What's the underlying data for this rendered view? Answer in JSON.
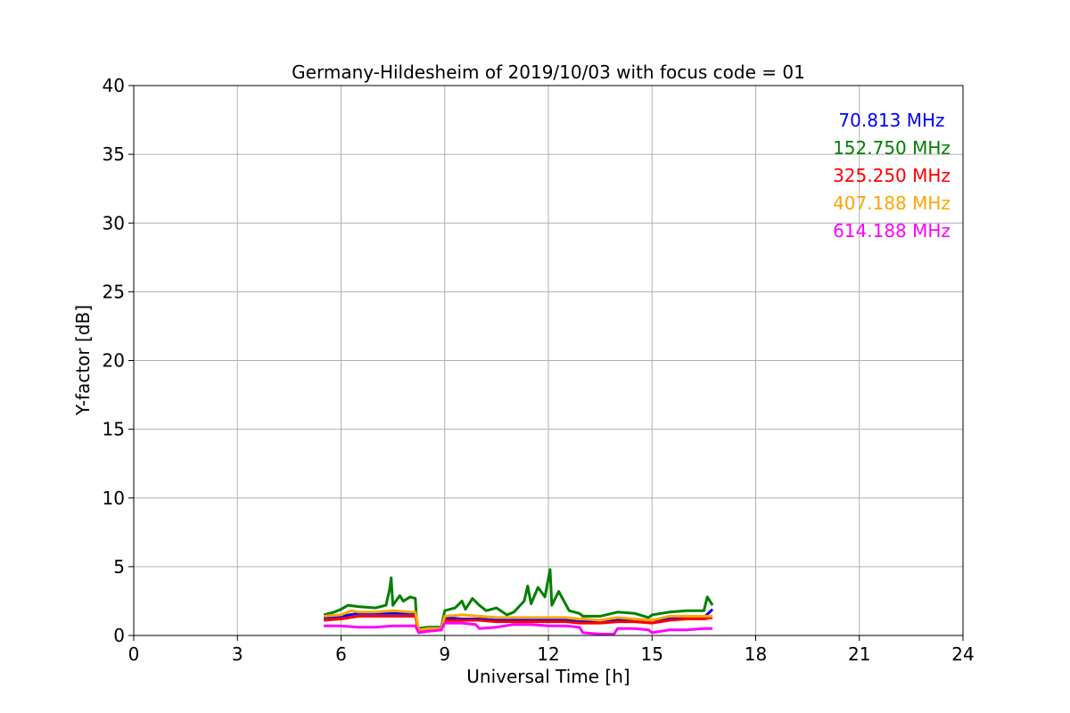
{
  "chart_data": {
    "type": "line",
    "title": "Germany-Hildesheim of 2019/10/03 with focus code = 01",
    "xlabel": "Universal Time [h]",
    "ylabel": "Y-factor [dB]",
    "xlim": [
      0,
      24
    ],
    "ylim": [
      0,
      40
    ],
    "x_ticks": [
      0,
      3,
      6,
      9,
      12,
      15,
      18,
      21,
      24
    ],
    "y_ticks": [
      0,
      5,
      10,
      15,
      20,
      25,
      30,
      35,
      40
    ],
    "grid": true,
    "legend_position": "top-right",
    "series": [
      {
        "name": "70.813 MHz",
        "color": "#0000ff",
        "x": [
          5.5,
          6.0,
          6.5,
          7.0,
          7.5,
          8.0,
          8.15,
          8.25,
          8.5,
          8.9,
          9.0,
          9.5,
          10.0,
          10.5,
          11.0,
          11.5,
          12.0,
          12.5,
          12.9,
          13.0,
          13.5,
          14.0,
          14.5,
          15.0,
          15.5,
          16.0,
          16.5,
          16.75
        ],
        "y": [
          1.3,
          1.4,
          1.6,
          1.6,
          1.6,
          1.6,
          1.6,
          0.3,
          0.4,
          0.5,
          1.3,
          1.2,
          1.2,
          1.1,
          1.1,
          1.1,
          1.1,
          1.1,
          1.0,
          1.0,
          1.0,
          1.1,
          1.1,
          1.0,
          1.2,
          1.3,
          1.3,
          1.9
        ]
      },
      {
        "name": "152.750 MHz",
        "color": "#008000",
        "x": [
          5.5,
          5.8,
          6.0,
          6.2,
          6.5,
          7.0,
          7.3,
          7.4,
          7.45,
          7.5,
          7.7,
          7.8,
          8.0,
          8.15,
          8.2,
          8.5,
          8.9,
          9.0,
          9.3,
          9.5,
          9.6,
          9.8,
          10.0,
          10.2,
          10.5,
          10.8,
          11.0,
          11.3,
          11.4,
          11.5,
          11.7,
          11.9,
          12.05,
          12.1,
          12.3,
          12.6,
          12.9,
          13.0,
          13.5,
          14.0,
          14.5,
          14.9,
          15.0,
          15.5,
          16.0,
          16.5,
          16.6,
          16.75
        ],
        "y": [
          1.5,
          1.7,
          1.9,
          2.2,
          2.1,
          2.0,
          2.2,
          3.3,
          4.2,
          2.2,
          2.9,
          2.5,
          2.8,
          2.7,
          0.5,
          0.6,
          0.6,
          1.8,
          2.0,
          2.5,
          1.9,
          2.7,
          2.2,
          1.8,
          2.0,
          1.5,
          1.7,
          2.5,
          3.6,
          2.3,
          3.5,
          2.8,
          4.8,
          2.2,
          3.2,
          1.8,
          1.6,
          1.4,
          1.4,
          1.7,
          1.6,
          1.3,
          1.5,
          1.7,
          1.8,
          1.8,
          2.8,
          2.2
        ]
      },
      {
        "name": "325.250 MHz",
        "color": "#ff0000",
        "x": [
          5.5,
          6.0,
          6.5,
          7.0,
          7.5,
          8.0,
          8.15,
          8.25,
          8.5,
          8.9,
          9.0,
          9.5,
          10.0,
          10.5,
          11.0,
          11.5,
          12.0,
          12.5,
          12.9,
          13.0,
          13.5,
          14.0,
          14.5,
          15.0,
          15.5,
          16.0,
          16.5,
          16.75
        ],
        "y": [
          1.1,
          1.2,
          1.4,
          1.4,
          1.4,
          1.4,
          1.4,
          0.3,
          0.3,
          0.4,
          1.1,
          1.1,
          1.1,
          1.0,
          1.0,
          1.0,
          1.0,
          1.0,
          0.9,
          0.9,
          0.9,
          1.0,
          1.0,
          0.9,
          1.1,
          1.2,
          1.2,
          1.3
        ]
      },
      {
        "name": "407.188 MHz",
        "color": "#ffa500",
        "x": [
          5.5,
          6.0,
          6.3,
          6.5,
          7.0,
          7.5,
          8.0,
          8.15,
          8.25,
          8.5,
          8.9,
          9.0,
          9.5,
          10.0,
          10.5,
          11.0,
          11.5,
          12.0,
          12.5,
          12.9,
          13.0,
          13.5,
          14.0,
          14.5,
          15.0,
          15.5,
          16.0,
          16.5,
          16.75
        ],
        "y": [
          1.4,
          1.5,
          1.8,
          1.7,
          1.7,
          1.8,
          1.7,
          1.7,
          0.4,
          0.5,
          0.5,
          1.4,
          1.5,
          1.4,
          1.3,
          1.3,
          1.3,
          1.3,
          1.3,
          1.2,
          1.2,
          1.1,
          1.3,
          1.2,
          1.1,
          1.4,
          1.4,
          1.4,
          1.4
        ]
      },
      {
        "name": "614.188 MHz",
        "color": "#ff00ff",
        "x": [
          5.5,
          6.0,
          6.5,
          7.0,
          7.5,
          8.0,
          8.15,
          8.25,
          8.5,
          8.9,
          9.0,
          9.5,
          9.9,
          10.0,
          10.5,
          11.0,
          11.5,
          12.0,
          12.5,
          12.9,
          13.0,
          13.5,
          13.9,
          14.0,
          14.5,
          14.9,
          15.0,
          15.5,
          16.0,
          16.5,
          16.75
        ],
        "y": [
          0.7,
          0.7,
          0.6,
          0.6,
          0.7,
          0.7,
          0.7,
          0.2,
          0.3,
          0.4,
          0.9,
          0.9,
          0.8,
          0.5,
          0.6,
          0.8,
          0.8,
          0.7,
          0.7,
          0.6,
          0.2,
          0.1,
          0.1,
          0.5,
          0.5,
          0.4,
          0.2,
          0.4,
          0.4,
          0.5,
          0.5
        ]
      }
    ]
  }
}
